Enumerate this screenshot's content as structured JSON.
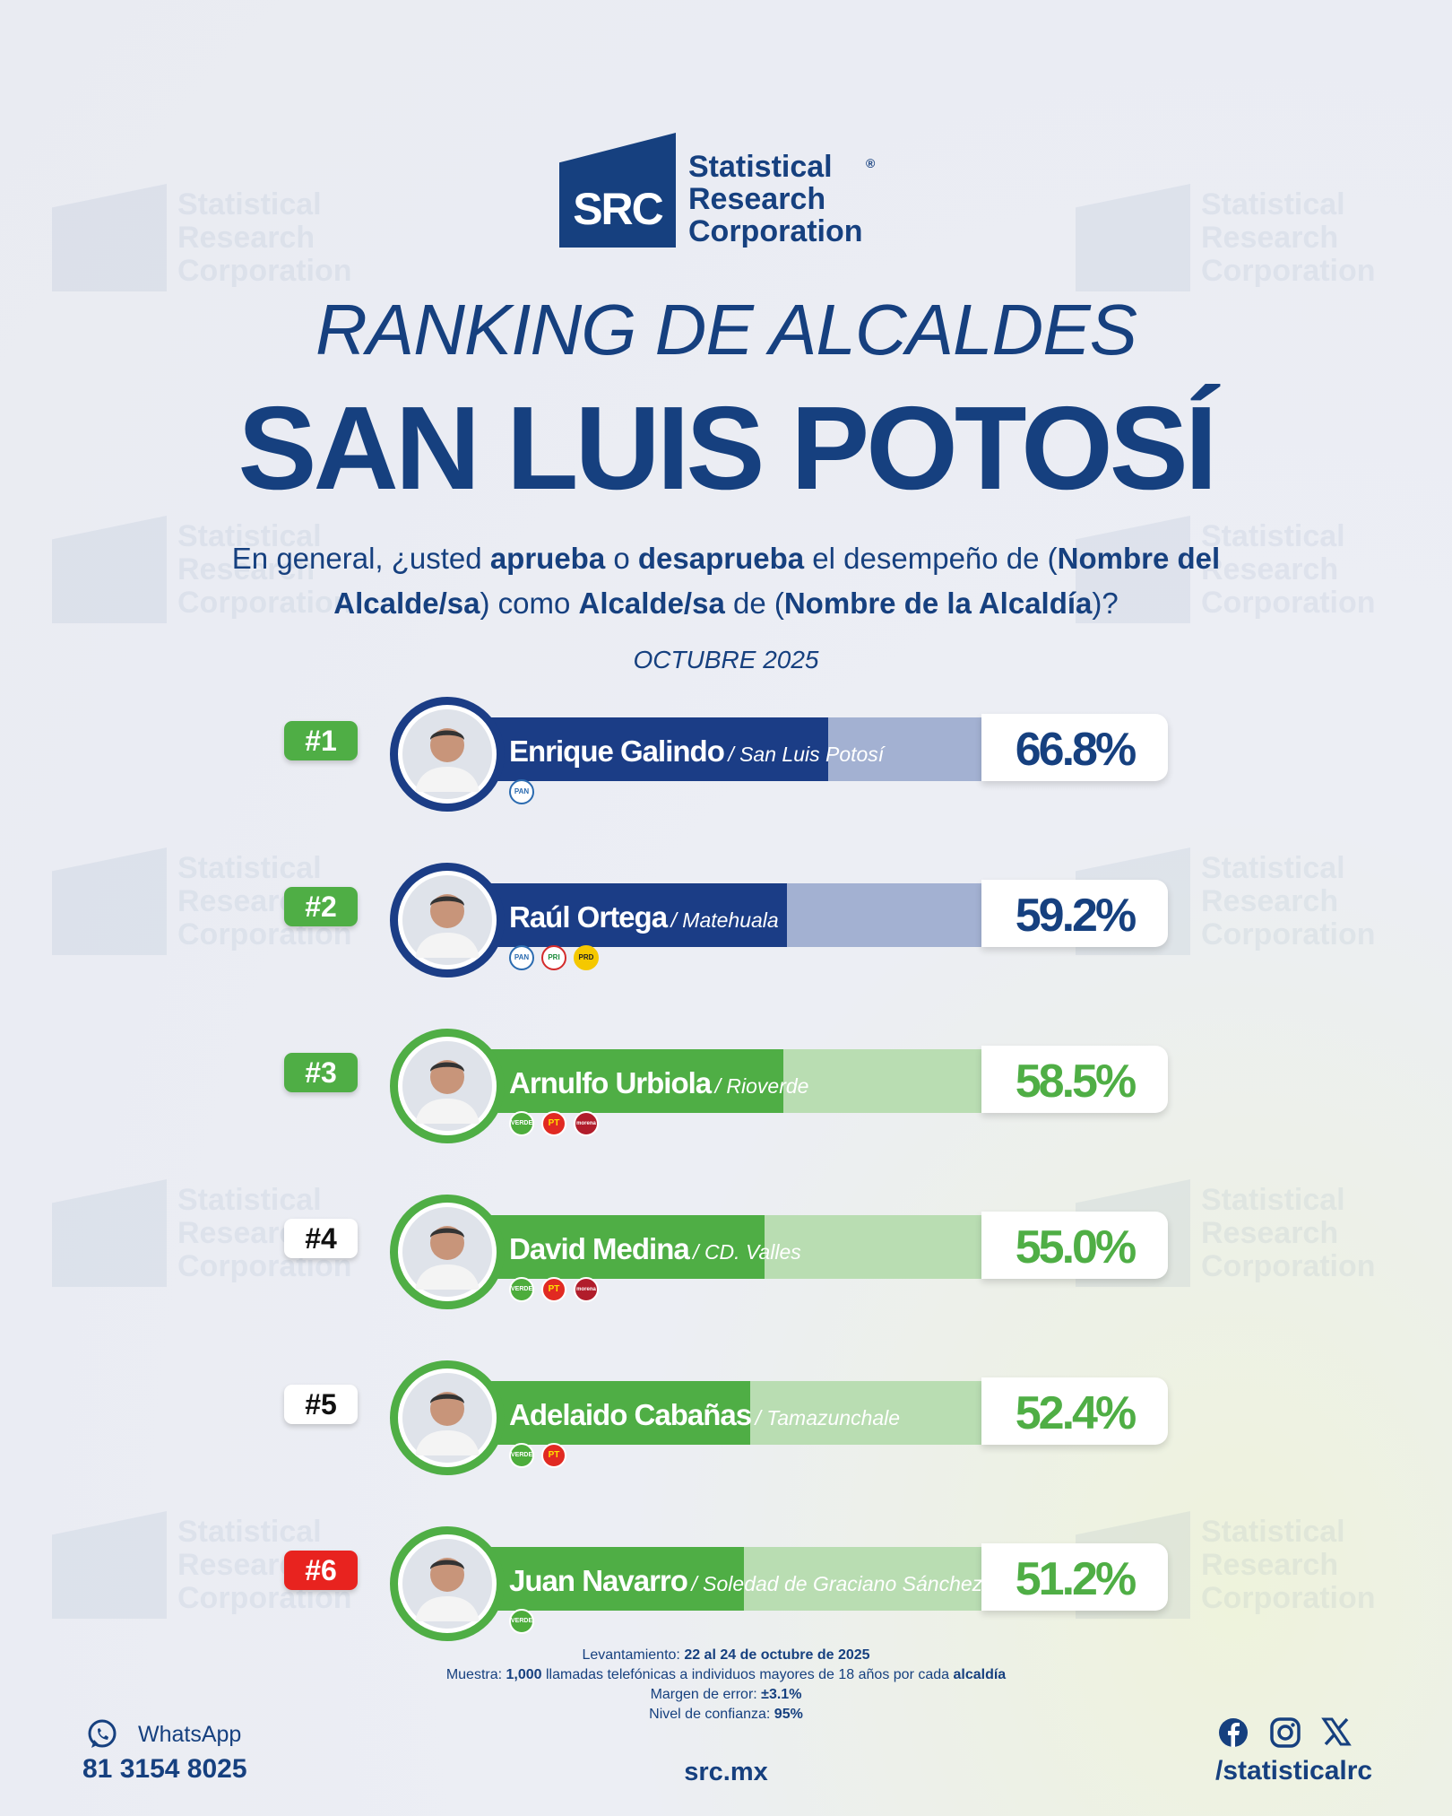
{
  "brand": {
    "mark": "SRC",
    "line1": "Statistical",
    "line2": "Research",
    "line3": "Corporation",
    "reg": "®",
    "primary_color": "#16407f"
  },
  "heading": {
    "title": "RANKING DE ALCALDES",
    "subtitle": "SAN LUIS POTOSÍ"
  },
  "question": {
    "p1": "En general, ¿usted ",
    "b1": "aprueba",
    "p2": " o ",
    "b2": "desaprueba",
    "p3": " el desempeño de (",
    "b3": "Nombre del Alcalde/sa",
    "p4": ") como ",
    "b4": "Alcalde/sa",
    "p5": " de (",
    "b5": "Nombre de la Alcaldía",
    "p6": ")?"
  },
  "date": "OCTUBRE 2025",
  "chart_data": {
    "type": "bar",
    "orientation": "horizontal",
    "unit": "%",
    "xlim": [
      0,
      100
    ],
    "rows": [
      {
        "rank": "#1",
        "name": "Enrique Galindo",
        "city": "/ San Luis Potosí",
        "value": 66.8,
        "label": "66.8%",
        "parties": [
          {
            "code": "pan",
            "label": "PAN"
          }
        ],
        "bar_color": "#1b3d86",
        "light_color": "#a3b1d2",
        "rank_bg": "#4fae45",
        "rank_fg": "#ffffff",
        "value_color": "#16407f"
      },
      {
        "rank": "#2",
        "name": "Raúl Ortega",
        "city": "/ Matehuala",
        "value": 59.2,
        "label": "59.2%",
        "parties": [
          {
            "code": "pan",
            "label": "PAN"
          },
          {
            "code": "pri",
            "label": "PRI"
          },
          {
            "code": "prd",
            "label": "PRD"
          }
        ],
        "bar_color": "#1b3d86",
        "light_color": "#a3b1d2",
        "rank_bg": "#4fae45",
        "rank_fg": "#ffffff",
        "value_color": "#16407f"
      },
      {
        "rank": "#3",
        "name": "Arnulfo Urbiola",
        "city": "/ Rioverde",
        "value": 58.5,
        "label": "58.5%",
        "parties": [
          {
            "code": "verde",
            "label": "VERDE"
          },
          {
            "code": "pt",
            "label": "PT"
          },
          {
            "code": "morena",
            "label": "morena"
          }
        ],
        "bar_color": "#4fae45",
        "light_color": "#b9ddb2",
        "rank_bg": "#4fae45",
        "rank_fg": "#ffffff",
        "value_color": "#4fae45"
      },
      {
        "rank": "#4",
        "name": "David Medina",
        "city": "/ CD. Valles",
        "value": 55.0,
        "label": "55.0%",
        "parties": [
          {
            "code": "verde",
            "label": "VERDE"
          },
          {
            "code": "pt",
            "label": "PT"
          },
          {
            "code": "morena",
            "label": "morena"
          }
        ],
        "bar_color": "#4fae45",
        "light_color": "#b9ddb2",
        "rank_bg": "#ffffff",
        "rank_fg": "#111111",
        "value_color": "#4fae45"
      },
      {
        "rank": "#5",
        "name": "Adelaido Cabañas",
        "city": "/ Tamazunchale",
        "value": 52.4,
        "label": "52.4%",
        "parties": [
          {
            "code": "verde",
            "label": "VERDE"
          },
          {
            "code": "pt",
            "label": "PT"
          }
        ],
        "bar_color": "#4fae45",
        "light_color": "#b9ddb2",
        "rank_bg": "#ffffff",
        "rank_fg": "#111111",
        "value_color": "#4fae45"
      },
      {
        "rank": "#6",
        "name": "Juan Navarro",
        "city": "/ Soledad de Graciano Sánchez",
        "value": 51.2,
        "label": "51.2%",
        "parties": [
          {
            "code": "verde",
            "label": "VERDE"
          }
        ],
        "bar_color": "#4fae45",
        "light_color": "#b9ddb2",
        "rank_bg": "#e8231f",
        "rank_fg": "#ffffff",
        "value_color": "#4fae45"
      }
    ]
  },
  "methodology": {
    "l1_label": "Levantamiento: ",
    "l1_value": "22 al 24 de octubre de 2025",
    "l2_label": "Muestra: ",
    "l2_value": "1,000",
    "l2_text": " llamadas telefónicas a individuos mayores de 18 años por cada ",
    "l2_end": "alcaldía",
    "l3_label": "Margen de error: ",
    "l3_value": "±3.1%",
    "l4_label": "Nivel de confianza: ",
    "l4_value": "95%"
  },
  "footer": {
    "whatsapp_label": "WhatsApp",
    "phone": "81 3154 8025",
    "website": "src.mx",
    "handle": "/statisticalrc",
    "icons": [
      "whatsapp-icon",
      "facebook-icon",
      "instagram-icon",
      "x-icon"
    ]
  }
}
